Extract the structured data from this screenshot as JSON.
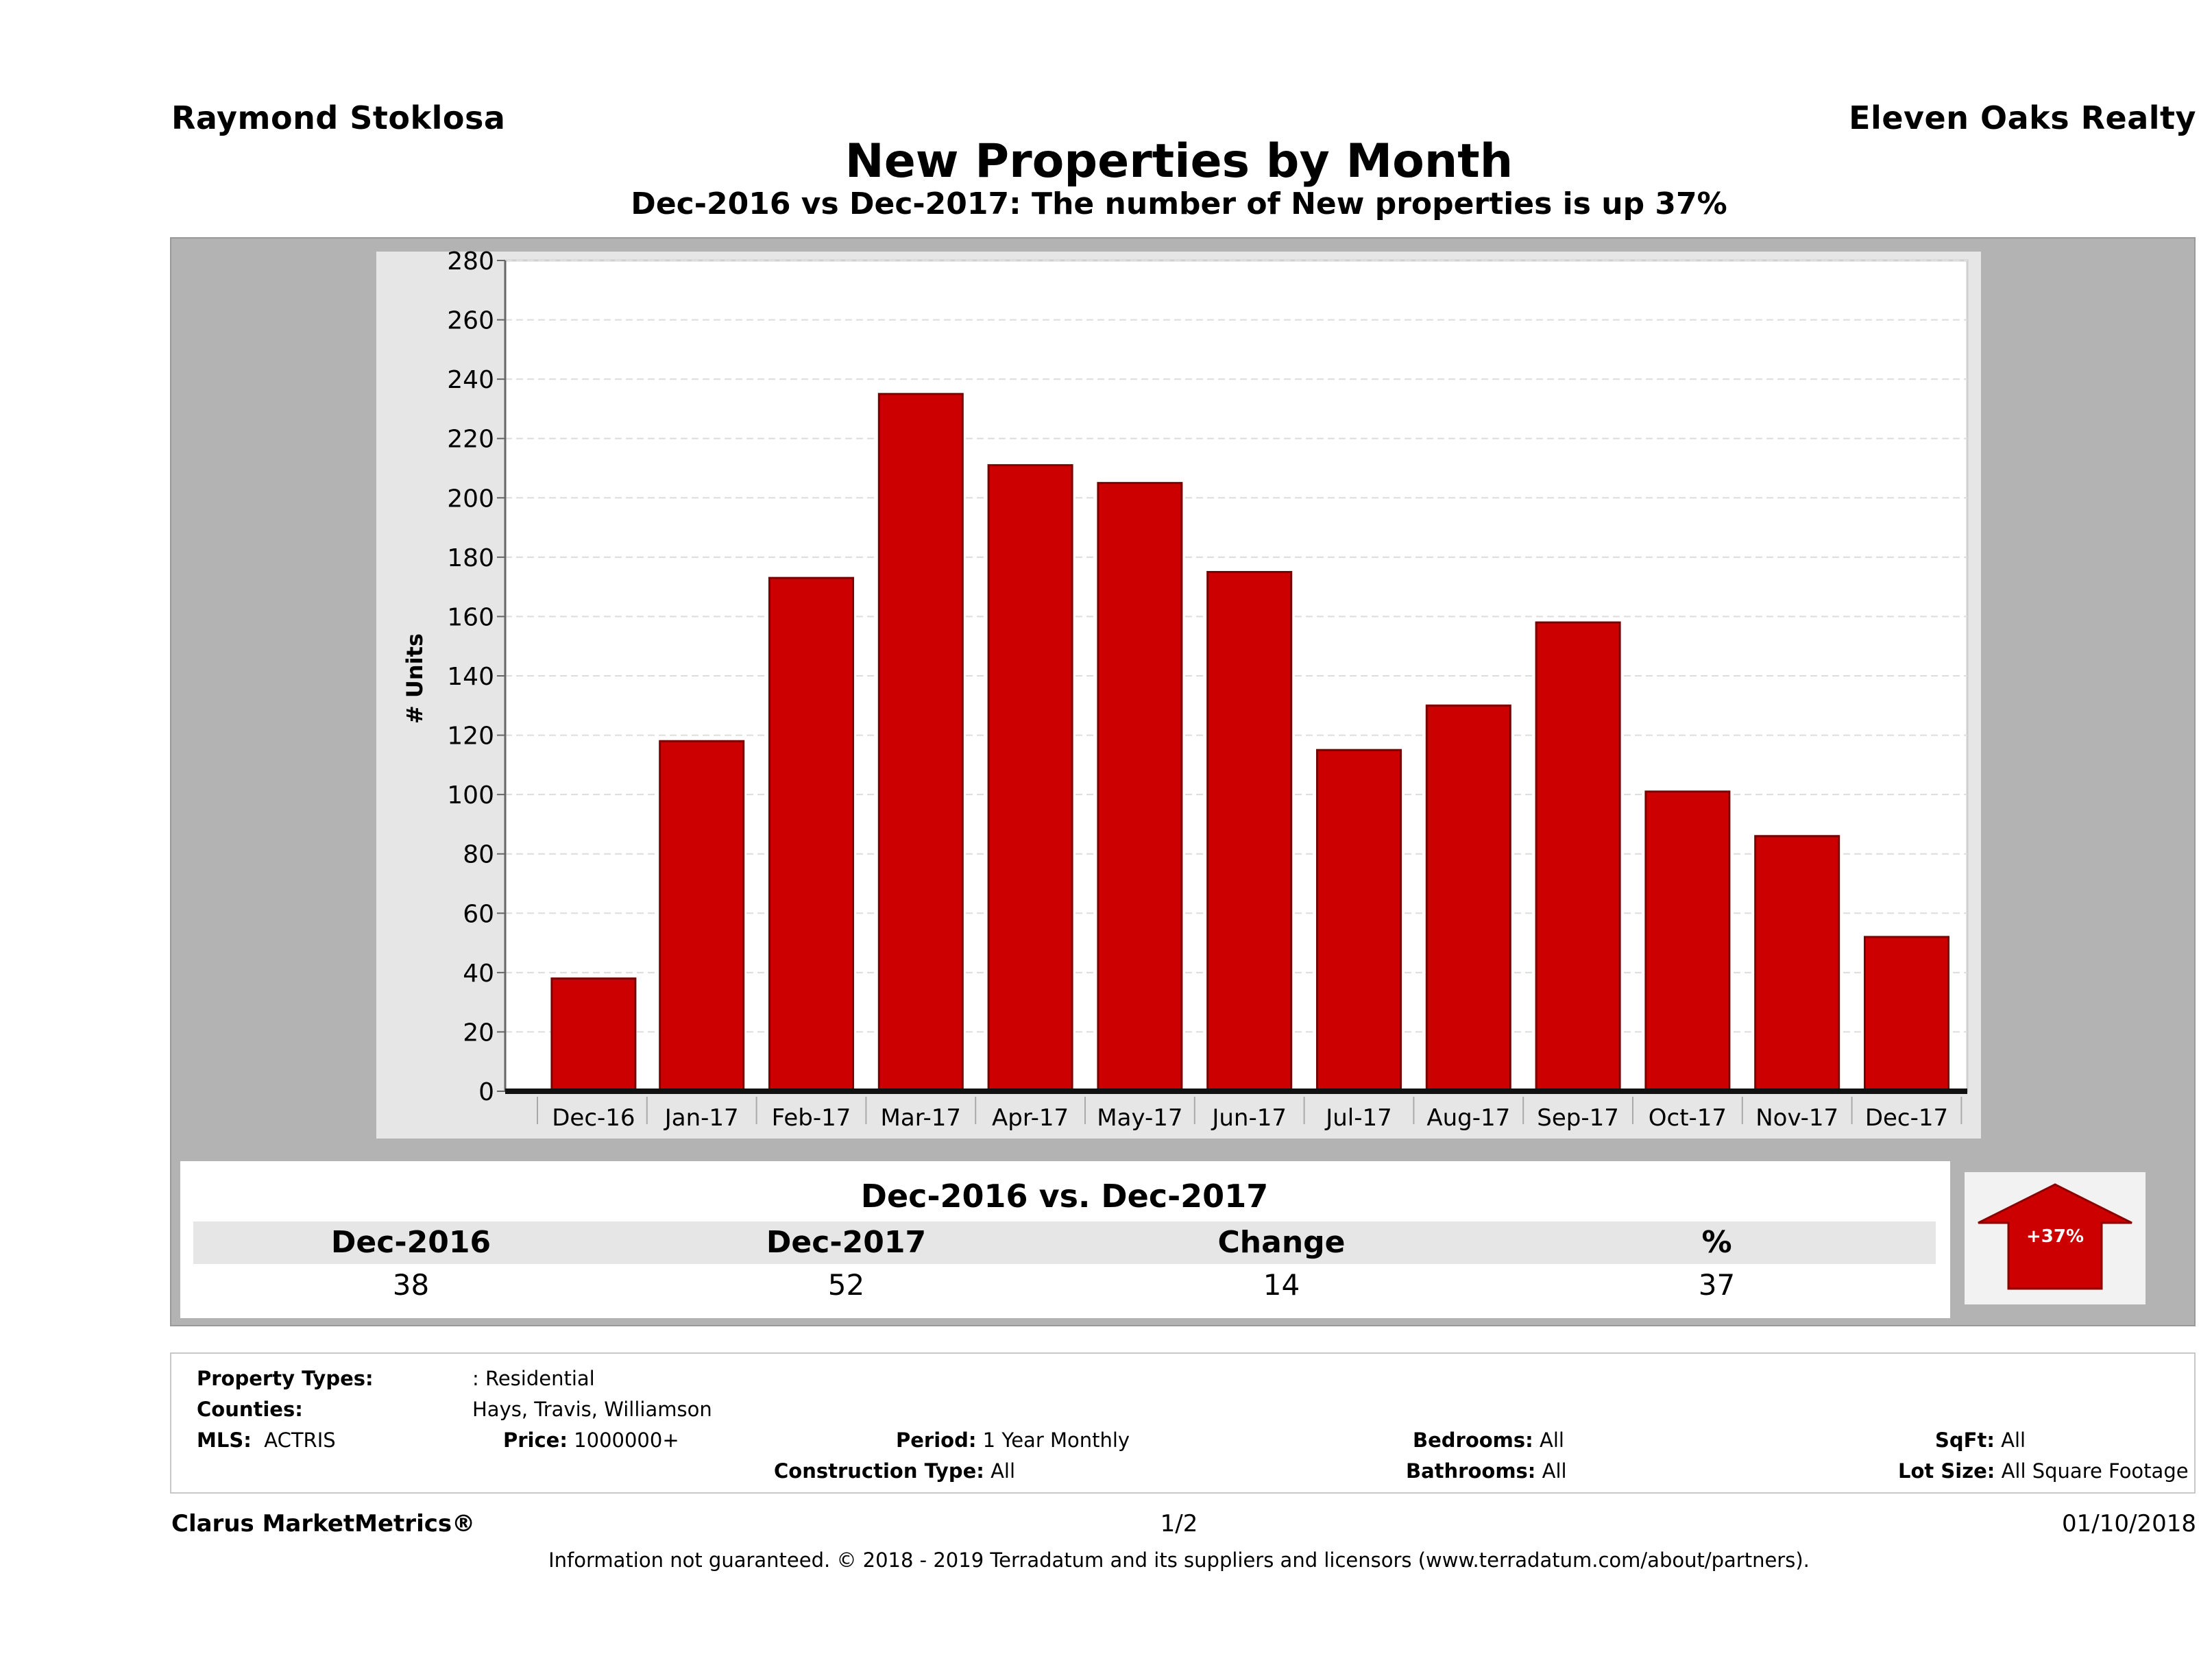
{
  "header": {
    "agent_name": "Raymond Stoklosa",
    "company": "Eleven Oaks Realty",
    "title": "New Properties by Month",
    "subtitle": "Dec-2016 vs Dec-2017: The number of New  properties is up 37%"
  },
  "chart_data": {
    "type": "bar",
    "title": "New Properties by Month",
    "xlabel": "",
    "ylabel": "# Units",
    "categories": [
      "Dec-16",
      "Jan-17",
      "Feb-17",
      "Mar-17",
      "Apr-17",
      "May-17",
      "Jun-17",
      "Jul-17",
      "Aug-17",
      "Sep-17",
      "Oct-17",
      "Nov-17",
      "Dec-17"
    ],
    "values": [
      38,
      118,
      173,
      235,
      211,
      205,
      175,
      115,
      130,
      158,
      101,
      86,
      52
    ],
    "ylim": [
      0,
      280
    ],
    "yticks": [
      0,
      20,
      40,
      60,
      80,
      100,
      120,
      140,
      160,
      180,
      200,
      220,
      240,
      260,
      280
    ],
    "grid": true,
    "bar_color": "#cc0000"
  },
  "comparison": {
    "heading": "Dec-2016 vs. Dec-2017",
    "labels": [
      "Dec-2016",
      "Dec-2017",
      "Change",
      "%"
    ],
    "values": [
      "38",
      "52",
      "14",
      "37"
    ],
    "badge": "+37%",
    "badge_color": "#cc0000"
  },
  "filters": {
    "property_types_label": "Property Types:",
    "property_types_value": ": Residential",
    "counties_label": "Counties:",
    "counties_value": "Hays, Travis, Williamson",
    "mls_label": "MLS:",
    "mls_value": "ACTRIS",
    "price_label": "Price:",
    "price_value": "1000000+",
    "period_label": "Period:",
    "period_value": "1 Year Monthly",
    "construction_label": "Construction Type:",
    "construction_value": "All",
    "bedrooms_label": "Bedrooms:",
    "bedrooms_value": "All",
    "bathrooms_label": "Bathrooms:",
    "bathrooms_value": "All",
    "sqft_label": "SqFt:",
    "sqft_value": "All",
    "lot_label": "Lot Size:",
    "lot_value": "All Square Footage"
  },
  "footer": {
    "brand": "Clarus MarketMetrics®",
    "page": "1/2",
    "date": "01/10/2018",
    "disclaimer": "Information not guaranteed. © 2018 - 2019 Terradatum and its suppliers and licensors (www.terradatum.com/about/partners)."
  }
}
